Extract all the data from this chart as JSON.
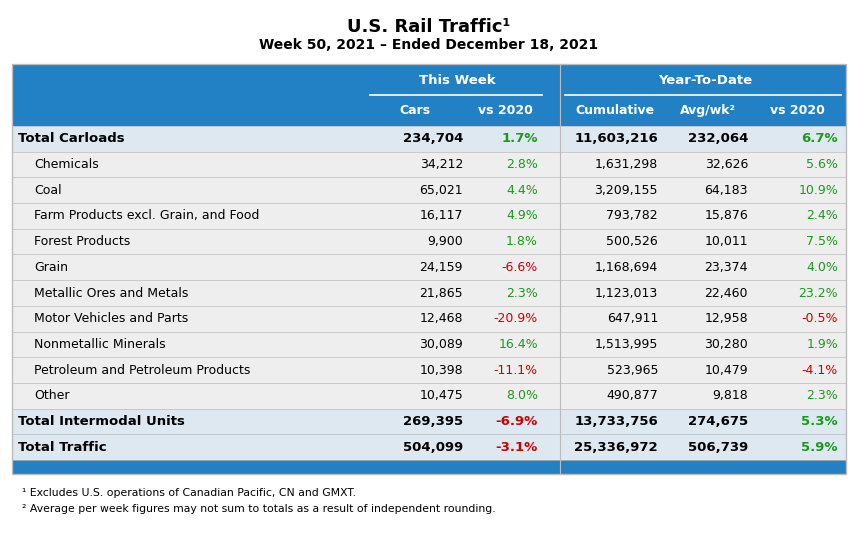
{
  "title": "U.S. Rail Traffic",
  "title_sup": "¹",
  "subtitle": "Week 50, 2021 – Ended December 18, 2021",
  "header_group1": "This Week",
  "header_group2": "Year-To-Date",
  "rows": [
    {
      "label": "Total Carloads",
      "bold": true,
      "indent": false,
      "cars": "234,704",
      "vs2020_wk": "1.7%",
      "vs2020_wk_neg": false,
      "cumulative": "11,603,216",
      "avgwk": "232,064",
      "vs2020_ytd": "6.7%",
      "vs2020_ytd_neg": false
    },
    {
      "label": "Chemicals",
      "bold": false,
      "indent": true,
      "cars": "34,212",
      "vs2020_wk": "2.8%",
      "vs2020_wk_neg": false,
      "cumulative": "1,631,298",
      "avgwk": "32,626",
      "vs2020_ytd": "5.6%",
      "vs2020_ytd_neg": false
    },
    {
      "label": "Coal",
      "bold": false,
      "indent": true,
      "cars": "65,021",
      "vs2020_wk": "4.4%",
      "vs2020_wk_neg": false,
      "cumulative": "3,209,155",
      "avgwk": "64,183",
      "vs2020_ytd": "10.9%",
      "vs2020_ytd_neg": false
    },
    {
      "label": "Farm Products excl. Grain, and Food",
      "bold": false,
      "indent": true,
      "cars": "16,117",
      "vs2020_wk": "4.9%",
      "vs2020_wk_neg": false,
      "cumulative": "793,782",
      "avgwk": "15,876",
      "vs2020_ytd": "2.4%",
      "vs2020_ytd_neg": false
    },
    {
      "label": "Forest Products",
      "bold": false,
      "indent": true,
      "cars": "9,900",
      "vs2020_wk": "1.8%",
      "vs2020_wk_neg": false,
      "cumulative": "500,526",
      "avgwk": "10,011",
      "vs2020_ytd": "7.5%",
      "vs2020_ytd_neg": false
    },
    {
      "label": "Grain",
      "bold": false,
      "indent": true,
      "cars": "24,159",
      "vs2020_wk": "-6.6%",
      "vs2020_wk_neg": true,
      "cumulative": "1,168,694",
      "avgwk": "23,374",
      "vs2020_ytd": "4.0%",
      "vs2020_ytd_neg": false
    },
    {
      "label": "Metallic Ores and Metals",
      "bold": false,
      "indent": true,
      "cars": "21,865",
      "vs2020_wk": "2.3%",
      "vs2020_wk_neg": false,
      "cumulative": "1,123,013",
      "avgwk": "22,460",
      "vs2020_ytd": "23.2%",
      "vs2020_ytd_neg": false
    },
    {
      "label": "Motor Vehicles and Parts",
      "bold": false,
      "indent": true,
      "cars": "12,468",
      "vs2020_wk": "-20.9%",
      "vs2020_wk_neg": true,
      "cumulative": "647,911",
      "avgwk": "12,958",
      "vs2020_ytd": "-0.5%",
      "vs2020_ytd_neg": true
    },
    {
      "label": "Nonmetallic Minerals",
      "bold": false,
      "indent": true,
      "cars": "30,089",
      "vs2020_wk": "16.4%",
      "vs2020_wk_neg": false,
      "cumulative": "1,513,995",
      "avgwk": "30,280",
      "vs2020_ytd": "1.9%",
      "vs2020_ytd_neg": false
    },
    {
      "label": "Petroleum and Petroleum Products",
      "bold": false,
      "indent": true,
      "cars": "10,398",
      "vs2020_wk": "-11.1%",
      "vs2020_wk_neg": true,
      "cumulative": "523,965",
      "avgwk": "10,479",
      "vs2020_ytd": "-4.1%",
      "vs2020_ytd_neg": true
    },
    {
      "label": "Other",
      "bold": false,
      "indent": true,
      "cars": "10,475",
      "vs2020_wk": "8.0%",
      "vs2020_wk_neg": false,
      "cumulative": "490,877",
      "avgwk": "9,818",
      "vs2020_ytd": "2.3%",
      "vs2020_ytd_neg": false
    },
    {
      "label": "Total Intermodal Units",
      "bold": true,
      "indent": false,
      "cars": "269,395",
      "vs2020_wk": "-6.9%",
      "vs2020_wk_neg": true,
      "cumulative": "13,733,756",
      "avgwk": "274,675",
      "vs2020_ytd": "5.3%",
      "vs2020_ytd_neg": false
    },
    {
      "label": "Total Traffic",
      "bold": true,
      "indent": false,
      "cars": "504,099",
      "vs2020_wk": "-3.1%",
      "vs2020_wk_neg": true,
      "cumulative": "25,336,972",
      "avgwk": "506,739",
      "vs2020_ytd": "5.9%",
      "vs2020_ytd_neg": false
    }
  ],
  "footnote1": "¹ Excludes U.S. operations of Canadian Pacific, CN and GMXT.",
  "footnote2": "² Average per week figures may not sum to totals as a result of independent rounding.",
  "header_blue": "#2181c4",
  "green_color": "#1a9a1a",
  "red_color": "#cc0000",
  "white": "#ffffff",
  "black": "#000000",
  "row_bg_bold": "#dde8f0",
  "row_bg_normal": "#eeeeee",
  "row_bg_white": "#f8f8f8",
  "bottom_bar_color": "#2181c4",
  "divider_color": "#bbbbbb"
}
